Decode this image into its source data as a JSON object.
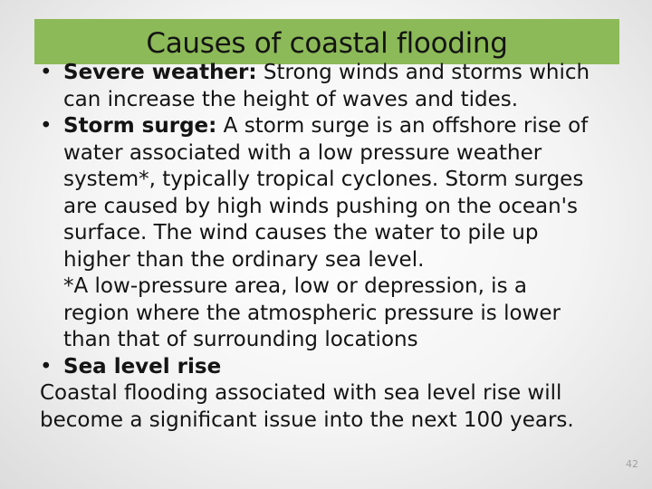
{
  "slide": {
    "title": "Causes of coastal flooding",
    "page_number": "42"
  },
  "bullets": [
    {
      "bullet": "•",
      "label": "Severe weather:",
      "lines": [
        " Strong winds and storms which",
        "can increase the height of waves and tides."
      ]
    },
    {
      "bullet": "•",
      "label": "Storm surge:",
      "lines": [
        " A storm surge is an offshore rise of",
        "water associated with a low pressure weather",
        "system*, typically tropical cyclones. Storm surges",
        "are caused by high winds pushing on the ocean's",
        "surface. The wind causes the water to pile up",
        "higher than the ordinary sea level.",
        "*A low-pressure area, low or depression, is a",
        "region where the atmospheric pressure is lower",
        "than that of surrounding locations"
      ]
    },
    {
      "bullet": "•",
      "label": "Sea level rise"
    }
  ],
  "closing_lines": [
    "Coastal flooding associated with sea level rise will",
    "become a significant issue into the next 100 years."
  ]
}
